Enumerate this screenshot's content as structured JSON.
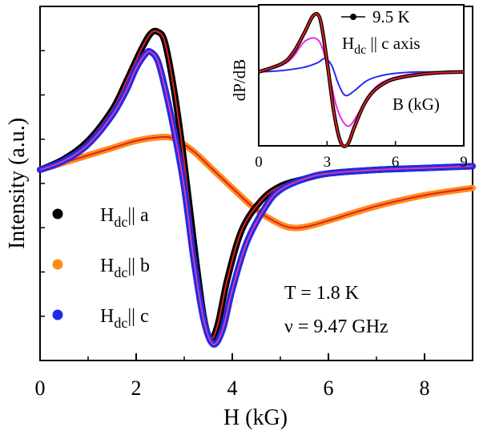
{
  "chart_data": [
    {
      "id": "main",
      "type": "line",
      "xlabel": "H (kG)",
      "ylabel": "Intensity (a.u.)",
      "xlim": [
        0,
        9
      ],
      "ylim": [
        -1.05,
        0.9
      ],
      "x_ticks": [
        0,
        2,
        4,
        6,
        8
      ],
      "x_tick_labels": [
        "0",
        "2",
        "4",
        "6",
        "8"
      ],
      "y_tick_labels_shown": false,
      "grid": false,
      "legend_position": "left",
      "legend_marker": "dot",
      "fit_color": "#dd2222",
      "annotations": [
        "T = 1.8 K",
        "ν = 9.47 GHz"
      ],
      "series": [
        {
          "legend_main": "H",
          "legend_sub": "dc",
          "legend_rest": "|| a",
          "color": "#000000",
          "x": [
            0,
            0.5,
            1,
            1.5,
            1.8,
            2.1,
            2.3,
            2.45,
            2.6,
            2.8,
            3.0,
            3.2,
            3.4,
            3.55,
            3.7,
            3.9,
            4.2,
            4.6,
            5.0,
            5.5,
            6.0,
            7.0,
            8.0,
            9.0
          ],
          "y": [
            0.0,
            0.06,
            0.16,
            0.33,
            0.49,
            0.66,
            0.75,
            0.76,
            0.7,
            0.42,
            0.04,
            -0.4,
            -0.8,
            -0.93,
            -0.85,
            -0.6,
            -0.33,
            -0.17,
            -0.09,
            -0.05,
            -0.02,
            0.0,
            0.01,
            0.02
          ]
        },
        {
          "legend_main": "H",
          "legend_sub": "dc",
          "legend_rest": "|| b",
          "color": "#ff8c1a",
          "x": [
            0,
            0.5,
            1,
            1.5,
            2,
            2.5,
            2.8,
            3.2,
            3.6,
            4.0,
            4.5,
            5.0,
            5.3,
            5.6,
            6.0,
            7.0,
            8.0,
            9.0
          ],
          "y": [
            0.0,
            0.04,
            0.08,
            0.12,
            0.16,
            0.18,
            0.17,
            0.1,
            0.0,
            -0.1,
            -0.22,
            -0.3,
            -0.32,
            -0.31,
            -0.28,
            -0.2,
            -0.14,
            -0.1
          ]
        },
        {
          "legend_main": "H",
          "legend_sub": "dc",
          "legend_rest": "|| c",
          "color": "#1f2be8",
          "x": [
            0,
            0.5,
            1,
            1.5,
            1.8,
            2.0,
            2.2,
            2.3,
            2.45,
            2.6,
            2.8,
            3.0,
            3.2,
            3.4,
            3.6,
            3.8,
            4.0,
            4.3,
            4.7,
            5.0,
            5.5,
            6.0,
            7.0,
            8.0,
            9.0
          ],
          "y": [
            0.0,
            0.05,
            0.14,
            0.3,
            0.44,
            0.56,
            0.64,
            0.65,
            0.6,
            0.45,
            0.2,
            -0.1,
            -0.5,
            -0.82,
            -0.96,
            -0.88,
            -0.66,
            -0.4,
            -0.2,
            -0.11,
            -0.05,
            -0.02,
            0.0,
            0.01,
            0.02
          ]
        }
      ]
    },
    {
      "id": "inset",
      "type": "line",
      "xlabel": "B (kG)",
      "ylabel": "dP/dB",
      "xlim": [
        0,
        9
      ],
      "ylim": [
        -1.1,
        1.0
      ],
      "x_ticks": [
        0,
        3,
        6,
        9
      ],
      "x_tick_labels": [
        "0",
        "3",
        "6",
        "9"
      ],
      "y_tick_labels_shown": false,
      "legend_entry": "9.5 K",
      "legend_position": "top-right",
      "annotation_main": "H",
      "annotation_sub": "dc",
      "annotation_rest": " || c axis",
      "series": [
        {
          "name": "9.5 K",
          "color": "#000000",
          "marker": "dot",
          "x": [
            0,
            1,
            1.5,
            2.0,
            2.4,
            2.7,
            3.0,
            3.3,
            3.6,
            3.9,
            4.2,
            4.6,
            5.0,
            5.5,
            6.0,
            7.0,
            8.0,
            9.0
          ],
          "y": [
            0.0,
            0.12,
            0.28,
            0.58,
            0.84,
            0.78,
            0.15,
            -0.6,
            -1.05,
            -1.08,
            -0.82,
            -0.5,
            -0.3,
            -0.17,
            -0.1,
            -0.04,
            -0.01,
            0.0
          ]
        },
        {
          "color": "#dd2222",
          "x": [
            0,
            1,
            1.5,
            2.0,
            2.4,
            2.7,
            3.0,
            3.3,
            3.6,
            3.9,
            4.2,
            4.6,
            5.0,
            5.5,
            6.0,
            7.0,
            8.0,
            9.0
          ],
          "y": [
            0.0,
            0.12,
            0.28,
            0.58,
            0.84,
            0.78,
            0.15,
            -0.6,
            -1.05,
            -1.08,
            -0.82,
            -0.5,
            -0.3,
            -0.17,
            -0.1,
            -0.04,
            -0.01,
            0.0
          ]
        },
        {
          "color": "#e62ee6",
          "x": [
            0,
            1,
            1.5,
            2.0,
            2.5,
            2.8,
            3.1,
            3.4,
            3.7,
            4.0,
            4.4,
            4.8,
            5.3,
            6.0,
            7.0,
            8.0,
            9.0
          ],
          "y": [
            0.0,
            0.1,
            0.22,
            0.45,
            0.5,
            0.35,
            -0.05,
            -0.5,
            -0.74,
            -0.8,
            -0.6,
            -0.36,
            -0.18,
            -0.08,
            -0.02,
            0.0,
            0.0
          ]
        },
        {
          "color": "#2a2af0",
          "x": [
            0,
            1,
            2,
            2.6,
            2.9,
            3.2,
            3.5,
            3.8,
            4.2,
            4.7,
            5.2,
            6.0,
            7.0,
            8.0,
            9.0
          ],
          "y": [
            0.0,
            0.02,
            0.07,
            0.14,
            0.2,
            0.1,
            -0.18,
            -0.35,
            -0.28,
            -0.14,
            -0.07,
            -0.02,
            0.0,
            0.0,
            0.0
          ]
        }
      ]
    }
  ]
}
